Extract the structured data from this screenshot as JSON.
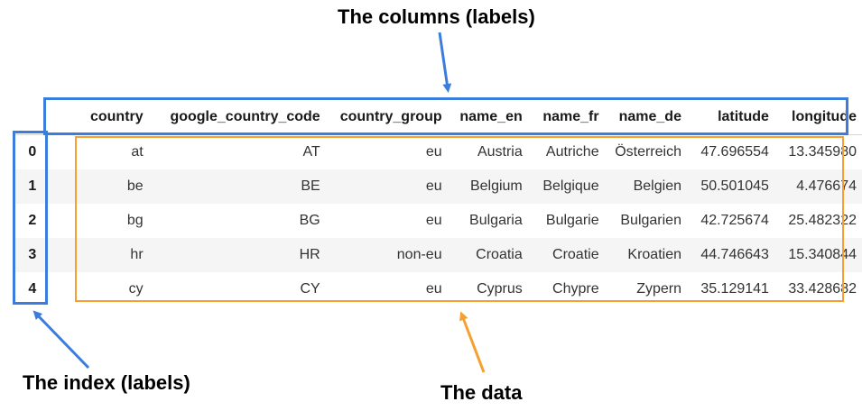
{
  "annotations": {
    "columns_label": "The columns (labels)",
    "index_label": "The index (labels)",
    "data_label": "The data"
  },
  "colors": {
    "columns_box": "#3b7ddd",
    "index_box": "#3b7ddd",
    "data_box": "#f5a030"
  },
  "table": {
    "columns": [
      "country",
      "google_country_code",
      "country_group",
      "name_en",
      "name_fr",
      "name_de",
      "latitude",
      "longitude"
    ],
    "index": [
      "0",
      "1",
      "2",
      "3",
      "4"
    ],
    "rows": [
      [
        "at",
        "AT",
        "eu",
        "Austria",
        "Autriche",
        "Österreich",
        "47.696554",
        "13.345980"
      ],
      [
        "be",
        "BE",
        "eu",
        "Belgium",
        "Belgique",
        "Belgien",
        "50.501045",
        "4.476674"
      ],
      [
        "bg",
        "BG",
        "eu",
        "Bulgaria",
        "Bulgarie",
        "Bulgarien",
        "42.725674",
        "25.482322"
      ],
      [
        "hr",
        "HR",
        "non-eu",
        "Croatia",
        "Croatie",
        "Kroatien",
        "44.746643",
        "15.340844"
      ],
      [
        "cy",
        "CY",
        "eu",
        "Cyprus",
        "Chypre",
        "Zypern",
        "35.129141",
        "33.428682"
      ]
    ]
  }
}
